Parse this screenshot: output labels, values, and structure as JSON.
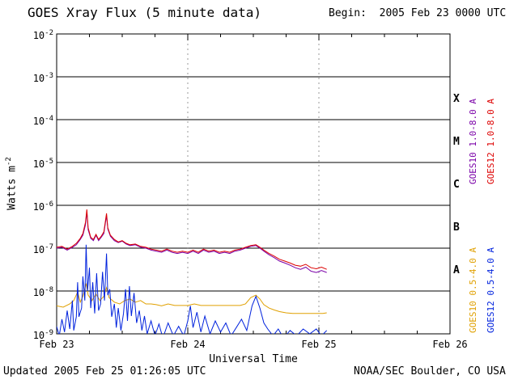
{
  "header": {
    "title": "GOES Xray Flux (5 minute data)",
    "begin": "Begin:  2005 Feb 23 0000 UTC"
  },
  "footer": {
    "updated": "Updated 2005 Feb 25 01:26:05 UTC",
    "credit": "NOAA/SEC Boulder, CO USA"
  },
  "axes": {
    "x_title": "Universal Time",
    "y_title_base": "Watts m",
    "y_title_exp": "-2"
  },
  "flare_classes": [
    "X",
    "M",
    "C",
    "B",
    "A"
  ],
  "legend": [
    {
      "label": "GOES10 1.0-8.0 A",
      "color": "#7a00a8"
    },
    {
      "label": "GOES12 1.0-8.0 A",
      "color": "#dd0000"
    },
    {
      "label": "GOES10 0.5-4.0 A",
      "color": "#e0a000"
    },
    {
      "label": "GOES12 0.5-4.0 A",
      "color": "#0022dd"
    }
  ],
  "chart_data": {
    "type": "line",
    "title": "GOES Xray Flux (5 minute data)",
    "xlabel": "Universal Time",
    "ylabel": "Watts m^-2",
    "x_unit": "days since 2005 Feb 23 0000 UTC",
    "xlim": [
      0,
      3
    ],
    "ylog_range": [
      -9,
      -2
    ],
    "y_ticks": [
      -2,
      -3,
      -4,
      -5,
      -6,
      -7,
      -8,
      -9
    ],
    "x_ticks": [
      {
        "pos": 0,
        "label": "Feb 23"
      },
      {
        "pos": 1,
        "label": "Feb 24"
      },
      {
        "pos": 2,
        "label": "Feb 25"
      },
      {
        "pos": 3,
        "label": "Feb 26"
      }
    ],
    "x_gridlines": [
      1,
      2
    ],
    "grid_color": "#999999",
    "series": [
      {
        "name": "GOES10 0.5-4.0 A",
        "color": "#e0a000",
        "points": [
          [
            0.0,
            4.5e-09
          ],
          [
            0.05,
            4.2e-09
          ],
          [
            0.1,
            5e-09
          ],
          [
            0.13,
            6e-09
          ],
          [
            0.16,
            9.5e-09
          ],
          [
            0.18,
            5.5e-09
          ],
          [
            0.2,
            7.5e-09
          ],
          [
            0.225,
            1.5e-08
          ],
          [
            0.24,
            8e-09
          ],
          [
            0.27,
            6e-09
          ],
          [
            0.3,
            8.5e-09
          ],
          [
            0.33,
            6e-09
          ],
          [
            0.36,
            7.5e-09
          ],
          [
            0.38,
            1.2e-08
          ],
          [
            0.4,
            7e-09
          ],
          [
            0.44,
            5.5e-09
          ],
          [
            0.48,
            5e-09
          ],
          [
            0.52,
            6e-09
          ],
          [
            0.56,
            6.5e-09
          ],
          [
            0.6,
            5.5e-09
          ],
          [
            0.64,
            6e-09
          ],
          [
            0.68,
            5e-09
          ],
          [
            0.72,
            5e-09
          ],
          [
            0.76,
            4.8e-09
          ],
          [
            0.8,
            4.5e-09
          ],
          [
            0.85,
            5e-09
          ],
          [
            0.9,
            4.6e-09
          ],
          [
            0.95,
            4.6e-09
          ],
          [
            1.0,
            4.6e-09
          ],
          [
            1.05,
            5e-09
          ],
          [
            1.1,
            4.6e-09
          ],
          [
            1.15,
            4.6e-09
          ],
          [
            1.2,
            4.6e-09
          ],
          [
            1.25,
            4.6e-09
          ],
          [
            1.3,
            4.6e-09
          ],
          [
            1.35,
            4.6e-09
          ],
          [
            1.4,
            4.6e-09
          ],
          [
            1.44,
            5e-09
          ],
          [
            1.48,
            7e-09
          ],
          [
            1.52,
            8e-09
          ],
          [
            1.55,
            6.5e-09
          ],
          [
            1.58,
            4.8e-09
          ],
          [
            1.62,
            4e-09
          ],
          [
            1.66,
            3.6e-09
          ],
          [
            1.7,
            3.3e-09
          ],
          [
            1.75,
            3.1e-09
          ],
          [
            1.8,
            3e-09
          ],
          [
            1.85,
            3e-09
          ],
          [
            1.9,
            3e-09
          ],
          [
            1.95,
            3e-09
          ],
          [
            2.0,
            3e-09
          ],
          [
            2.03,
            3e-09
          ],
          [
            2.06,
            3.1e-09
          ]
        ]
      },
      {
        "name": "GOES12 0.5-4.0 A",
        "color": "#0022dd",
        "points": [
          [
            0.0,
            1.5e-09
          ],
          [
            0.02,
            9e-10
          ],
          [
            0.04,
            2.2e-09
          ],
          [
            0.06,
            1.1e-09
          ],
          [
            0.08,
            3.5e-09
          ],
          [
            0.1,
            1.3e-09
          ],
          [
            0.12,
            6e-09
          ],
          [
            0.13,
            1.2e-09
          ],
          [
            0.15,
            2.5e-09
          ],
          [
            0.16,
            1.6e-08
          ],
          [
            0.17,
            2.5e-09
          ],
          [
            0.19,
            4e-09
          ],
          [
            0.2,
            2.2e-08
          ],
          [
            0.215,
            6e-09
          ],
          [
            0.225,
            1.2e-07
          ],
          [
            0.235,
            1e-08
          ],
          [
            0.25,
            3.5e-08
          ],
          [
            0.26,
            4e-09
          ],
          [
            0.275,
            1.6e-08
          ],
          [
            0.29,
            3e-09
          ],
          [
            0.305,
            2.6e-08
          ],
          [
            0.32,
            3.5e-09
          ],
          [
            0.335,
            5e-09
          ],
          [
            0.35,
            2.8e-08
          ],
          [
            0.365,
            6e-09
          ],
          [
            0.38,
            7.5e-08
          ],
          [
            0.39,
            8e-09
          ],
          [
            0.405,
            1.1e-08
          ],
          [
            0.42,
            2.5e-09
          ],
          [
            0.44,
            5e-09
          ],
          [
            0.455,
            1.4e-09
          ],
          [
            0.47,
            4e-09
          ],
          [
            0.49,
            1.2e-09
          ],
          [
            0.51,
            3e-09
          ],
          [
            0.525,
            1.1e-08
          ],
          [
            0.54,
            2e-09
          ],
          [
            0.555,
            1.3e-08
          ],
          [
            0.57,
            2.6e-09
          ],
          [
            0.59,
            9e-09
          ],
          [
            0.61,
            1.8e-09
          ],
          [
            0.63,
            3.5e-09
          ],
          [
            0.65,
            1.2e-09
          ],
          [
            0.67,
            2.6e-09
          ],
          [
            0.69,
            1e-09
          ],
          [
            0.72,
            2e-09
          ],
          [
            0.75,
            9e-10
          ],
          [
            0.78,
            1.7e-09
          ],
          [
            0.81,
            8e-10
          ],
          [
            0.85,
            1.8e-09
          ],
          [
            0.89,
            9e-10
          ],
          [
            0.93,
            1.5e-09
          ],
          [
            0.97,
            9e-10
          ],
          [
            1.0,
            2e-09
          ],
          [
            1.02,
            4.5e-09
          ],
          [
            1.04,
            1.4e-09
          ],
          [
            1.07,
            3.2e-09
          ],
          [
            1.1,
            1.1e-09
          ],
          [
            1.13,
            2.6e-09
          ],
          [
            1.17,
            1e-09
          ],
          [
            1.21,
            2e-09
          ],
          [
            1.25,
            1.1e-09
          ],
          [
            1.29,
            1.8e-09
          ],
          [
            1.33,
            9e-10
          ],
          [
            1.37,
            1.4e-09
          ],
          [
            1.41,
            2.2e-09
          ],
          [
            1.45,
            1.2e-09
          ],
          [
            1.49,
            4.5e-09
          ],
          [
            1.52,
            7.5e-09
          ],
          [
            1.55,
            4e-09
          ],
          [
            1.58,
            1.8e-09
          ],
          [
            1.61,
            1.3e-09
          ],
          [
            1.65,
            9e-10
          ],
          [
            1.69,
            1.3e-09
          ],
          [
            1.73,
            8e-10
          ],
          [
            1.78,
            1.2e-09
          ],
          [
            1.83,
            9e-10
          ],
          [
            1.88,
            1.3e-09
          ],
          [
            1.93,
            1e-09
          ],
          [
            1.98,
            1.3e-09
          ],
          [
            2.02,
            9e-10
          ],
          [
            2.06,
            1.2e-09
          ]
        ]
      },
      {
        "name": "GOES10 1.0-8.0 A",
        "color": "#7a00a8",
        "points": [
          [
            0.0,
            1e-07
          ],
          [
            0.04,
            1.05e-07
          ],
          [
            0.08,
            9e-08
          ],
          [
            0.12,
            1.05e-07
          ],
          [
            0.15,
            1.2e-07
          ],
          [
            0.18,
            1.6e-07
          ],
          [
            0.2,
            2e-07
          ],
          [
            0.22,
            3.5e-07
          ],
          [
            0.23,
            7e-07
          ],
          [
            0.24,
            2.7e-07
          ],
          [
            0.26,
            1.7e-07
          ],
          [
            0.28,
            1.5e-07
          ],
          [
            0.3,
            2e-07
          ],
          [
            0.32,
            1.5e-07
          ],
          [
            0.34,
            1.8e-07
          ],
          [
            0.36,
            2.2e-07
          ],
          [
            0.38,
            5.8e-07
          ],
          [
            0.39,
            2.8e-07
          ],
          [
            0.41,
            1.9e-07
          ],
          [
            0.44,
            1.5e-07
          ],
          [
            0.47,
            1.35e-07
          ],
          [
            0.5,
            1.45e-07
          ],
          [
            0.53,
            1.25e-07
          ],
          [
            0.56,
            1.15e-07
          ],
          [
            0.6,
            1.2e-07
          ],
          [
            0.64,
            1.05e-07
          ],
          [
            0.68,
            1e-07
          ],
          [
            0.72,
            9e-08
          ],
          [
            0.76,
            8.5e-08
          ],
          [
            0.8,
            8e-08
          ],
          [
            0.84,
            9e-08
          ],
          [
            0.88,
            8e-08
          ],
          [
            0.92,
            7.5e-08
          ],
          [
            0.96,
            8e-08
          ],
          [
            1.0,
            7.5e-08
          ],
          [
            1.04,
            8.5e-08
          ],
          [
            1.08,
            7.5e-08
          ],
          [
            1.12,
            9e-08
          ],
          [
            1.16,
            8e-08
          ],
          [
            1.2,
            8.5e-08
          ],
          [
            1.24,
            7.5e-08
          ],
          [
            1.28,
            8e-08
          ],
          [
            1.32,
            7.5e-08
          ],
          [
            1.36,
            8.5e-08
          ],
          [
            1.4,
            9e-08
          ],
          [
            1.44,
            1e-07
          ],
          [
            1.48,
            1.1e-07
          ],
          [
            1.52,
            1.15e-07
          ],
          [
            1.55,
            1e-07
          ],
          [
            1.58,
            8.5e-08
          ],
          [
            1.62,
            7e-08
          ],
          [
            1.66,
            6e-08
          ],
          [
            1.7,
            5e-08
          ],
          [
            1.74,
            4.5e-08
          ],
          [
            1.78,
            4e-08
          ],
          [
            1.82,
            3.5e-08
          ],
          [
            1.86,
            3.2e-08
          ],
          [
            1.9,
            3.6e-08
          ],
          [
            1.94,
            2.9e-08
          ],
          [
            1.98,
            2.7e-08
          ],
          [
            2.02,
            3e-08
          ],
          [
            2.06,
            2.7e-08
          ]
        ]
      },
      {
        "name": "GOES12 1.0-8.0 A",
        "color": "#dd0000",
        "points": [
          [
            0.0,
            1.05e-07
          ],
          [
            0.04,
            1.1e-07
          ],
          [
            0.08,
            9.5e-08
          ],
          [
            0.12,
            1.1e-07
          ],
          [
            0.15,
            1.3e-07
          ],
          [
            0.18,
            1.7e-07
          ],
          [
            0.2,
            2.2e-07
          ],
          [
            0.22,
            4e-07
          ],
          [
            0.23,
            8e-07
          ],
          [
            0.24,
            3e-07
          ],
          [
            0.26,
            1.8e-07
          ],
          [
            0.28,
            1.6e-07
          ],
          [
            0.3,
            2.1e-07
          ],
          [
            0.32,
            1.6e-07
          ],
          [
            0.34,
            1.9e-07
          ],
          [
            0.36,
            2.4e-07
          ],
          [
            0.38,
            6.5e-07
          ],
          [
            0.39,
            3e-07
          ],
          [
            0.41,
            2e-07
          ],
          [
            0.44,
            1.6e-07
          ],
          [
            0.47,
            1.4e-07
          ],
          [
            0.5,
            1.5e-07
          ],
          [
            0.53,
            1.3e-07
          ],
          [
            0.56,
            1.2e-07
          ],
          [
            0.6,
            1.25e-07
          ],
          [
            0.64,
            1.1e-07
          ],
          [
            0.68,
            1.05e-07
          ],
          [
            0.72,
            9.5e-08
          ],
          [
            0.76,
            9e-08
          ],
          [
            0.8,
            8.5e-08
          ],
          [
            0.84,
            9.5e-08
          ],
          [
            0.88,
            8.5e-08
          ],
          [
            0.92,
            8e-08
          ],
          [
            0.96,
            8.5e-08
          ],
          [
            1.0,
            8e-08
          ],
          [
            1.04,
            9e-08
          ],
          [
            1.08,
            8e-08
          ],
          [
            1.12,
            9.5e-08
          ],
          [
            1.16,
            8.5e-08
          ],
          [
            1.2,
            9e-08
          ],
          [
            1.24,
            8e-08
          ],
          [
            1.28,
            8.5e-08
          ],
          [
            1.32,
            8e-08
          ],
          [
            1.36,
            9e-08
          ],
          [
            1.4,
            9.5e-08
          ],
          [
            1.44,
            1.05e-07
          ],
          [
            1.48,
            1.15e-07
          ],
          [
            1.52,
            1.2e-07
          ],
          [
            1.55,
            1.05e-07
          ],
          [
            1.58,
            9e-08
          ],
          [
            1.62,
            7.5e-08
          ],
          [
            1.66,
            6.5e-08
          ],
          [
            1.7,
            5.5e-08
          ],
          [
            1.74,
            5e-08
          ],
          [
            1.78,
            4.5e-08
          ],
          [
            1.82,
            4e-08
          ],
          [
            1.86,
            3.8e-08
          ],
          [
            1.9,
            4.2e-08
          ],
          [
            1.94,
            3.5e-08
          ],
          [
            1.98,
            3.3e-08
          ],
          [
            2.02,
            3.6e-08
          ],
          [
            2.06,
            3.2e-08
          ]
        ]
      }
    ]
  }
}
